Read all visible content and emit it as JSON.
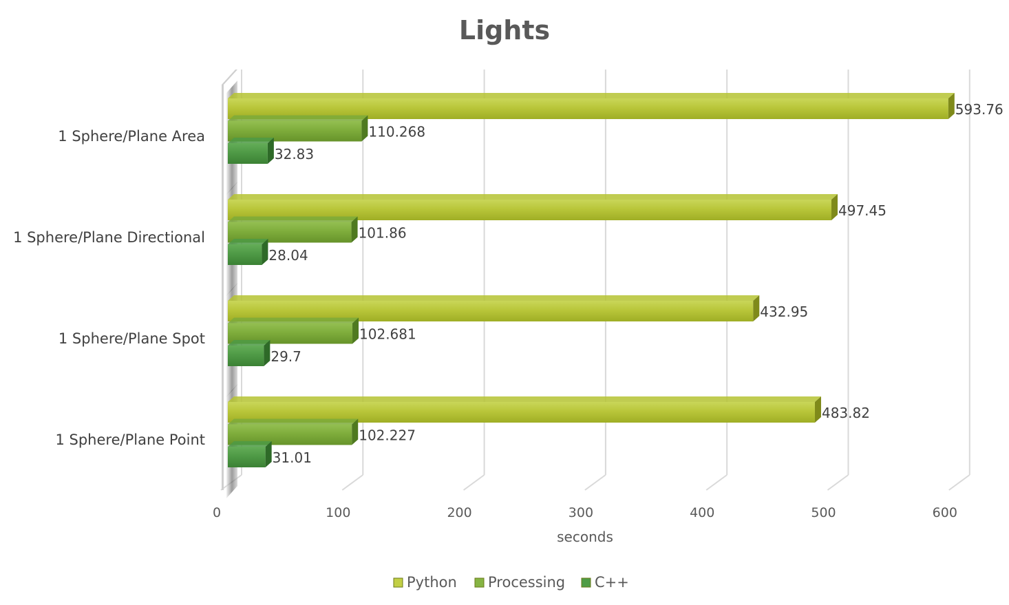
{
  "chart_data": {
    "type": "bar",
    "orientation": "horizontal",
    "title": "Lights",
    "xlabel": "seconds",
    "ylabel": "",
    "xlim": [
      0,
      600
    ],
    "xticks": [
      0,
      100,
      200,
      300,
      400,
      500,
      600
    ],
    "grid": true,
    "legend_position": "bottom",
    "categories": [
      "1 Sphere/Plane Area",
      "1 Sphere/Plane Directional",
      "1 Sphere/Plane Spot",
      "1 Sphere/Plane Point"
    ],
    "series": [
      {
        "name": "Python",
        "color": "#B5C332",
        "values": [
          593.76,
          497.45,
          432.95,
          483.82
        ],
        "labels": [
          "593.76",
          "497.45",
          "432.95",
          "483.82"
        ]
      },
      {
        "name": "Processing",
        "color": "#7DAA3A",
        "values": [
          110.268,
          101.86,
          102.681,
          102.227
        ],
        "labels": [
          "110.268",
          "101.86",
          "102.681",
          "102.227"
        ]
      },
      {
        "name": "C++",
        "color": "#4E9A45",
        "values": [
          32.83,
          28.04,
          29.7,
          31.01
        ],
        "labels": [
          "32.83",
          "28.04",
          "29.7",
          "31.01"
        ]
      }
    ]
  }
}
